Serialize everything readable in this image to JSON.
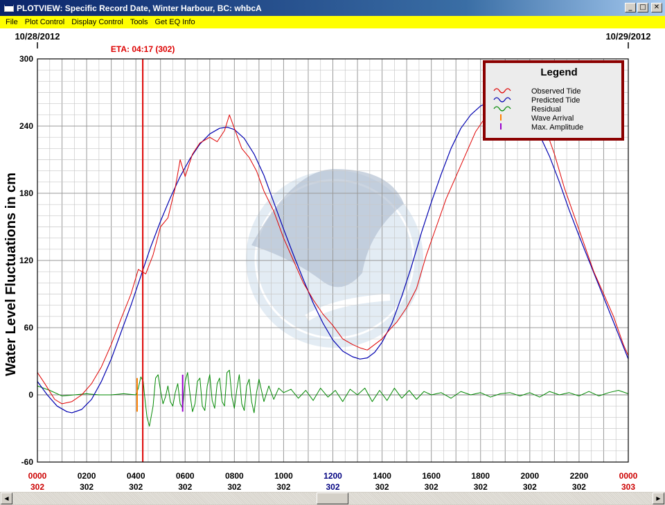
{
  "window": {
    "title": "PLOTVIEW: Specific Record Date, Winter Harbour, BC: whbcA",
    "minimize_glyph": "_",
    "maximize_glyph": "□",
    "close_glyph": "✕"
  },
  "menu": [
    "File",
    "Plot Control",
    "Display Control",
    "Tools",
    "Get EQ Info"
  ],
  "scrollbar": {
    "left_glyph": "◀",
    "right_glyph": "▶",
    "position_fraction": 0.5
  },
  "colors": {
    "observed": "#e00000",
    "predicted": "#0000b0",
    "residual": "#008800",
    "arrival": "#ff8000",
    "max_amplitude": "#9900cc",
    "eta_line": "#dd0000",
    "legend_border": "#8b0000",
    "noaa_logo": "#c8d8ea"
  },
  "chart_data": {
    "type": "line",
    "ylabel": "Water Level Fluctuations in cm",
    "ylim": [
      -60,
      300
    ],
    "yticks": [
      -60,
      0,
      60,
      120,
      180,
      240,
      300
    ],
    "xlim": [
      0,
      24
    ],
    "grid": true,
    "legend_position": "top-right",
    "legend_title": "Legend",
    "date_labels": [
      {
        "x": 0,
        "text": "10/28/2012"
      },
      {
        "x": 24,
        "text": "10/29/2012"
      }
    ],
    "x_ticks": [
      {
        "x": 0,
        "time": "0000",
        "day": "302",
        "style": "red"
      },
      {
        "x": 2,
        "time": "0200",
        "day": "302",
        "style": "black"
      },
      {
        "x": 4,
        "time": "0400",
        "day": "302",
        "style": "black"
      },
      {
        "x": 6,
        "time": "0600",
        "day": "302",
        "style": "black"
      },
      {
        "x": 8,
        "time": "0800",
        "day": "302",
        "style": "black"
      },
      {
        "x": 10,
        "time": "1000",
        "day": "302",
        "style": "black"
      },
      {
        "x": 12,
        "time": "1200",
        "day": "302",
        "style": "blue"
      },
      {
        "x": 14,
        "time": "1400",
        "day": "302",
        "style": "black"
      },
      {
        "x": 16,
        "time": "1600",
        "day": "302",
        "style": "black"
      },
      {
        "x": 18,
        "time": "1800",
        "day": "302",
        "style": "black"
      },
      {
        "x": 20,
        "time": "2000",
        "day": "302",
        "style": "black"
      },
      {
        "x": 22,
        "time": "2200",
        "day": "302",
        "style": "black"
      },
      {
        "x": 24,
        "time": "0000",
        "day": "303",
        "style": "red"
      }
    ],
    "eta": {
      "x": 4.28,
      "label": "ETA: 04:17 (302)"
    },
    "wave_arrival": {
      "x": 4.05,
      "y_range": [
        -15,
        15
      ]
    },
    "max_amplitude": {
      "x": 5.9,
      "y_range": [
        -15,
        18
      ]
    },
    "series": [
      {
        "name": "Observed Tide",
        "key": "observed",
        "x": [
          0,
          0.3,
          0.7,
          1.0,
          1.4,
          1.8,
          2.2,
          2.6,
          3.0,
          3.4,
          3.8,
          4.1,
          4.4,
          4.7,
          5.0,
          5.3,
          5.6,
          5.8,
          6.0,
          6.3,
          6.6,
          7.0,
          7.3,
          7.6,
          7.8,
          8.0,
          8.3,
          8.6,
          8.9,
          9.2,
          9.6,
          10.0,
          10.4,
          10.8,
          11.2,
          11.6,
          12.0,
          12.4,
          12.8,
          13.1,
          13.4,
          13.7,
          14.0,
          14.3,
          14.6,
          15.0,
          15.4,
          15.8,
          16.2,
          16.6,
          17.0,
          17.4,
          17.8,
          18.2,
          18.6,
          19.0,
          19.4,
          19.8,
          20.2,
          20.6,
          21.0,
          21.4,
          21.8,
          22.2,
          22.6,
          23.0,
          23.4,
          23.8,
          24.0
        ],
        "y": [
          20,
          10,
          -4,
          -8,
          -6,
          0,
          10,
          25,
          45,
          68,
          90,
          112,
          108,
          125,
          150,
          158,
          185,
          210,
          195,
          215,
          225,
          230,
          226,
          236,
          250,
          238,
          220,
          212,
          200,
          182,
          164,
          140,
          120,
          100,
          85,
          72,
          62,
          50,
          45,
          42,
          40,
          45,
          50,
          58,
          65,
          78,
          95,
          125,
          150,
          175,
          195,
          215,
          235,
          248,
          260,
          268,
          272,
          270,
          260,
          240,
          215,
          185,
          160,
          135,
          110,
          90,
          70,
          45,
          35
        ]
      },
      {
        "name": "Predicted Tide",
        "key": "predicted",
        "x": [
          0,
          0.4,
          0.8,
          1.2,
          1.4,
          1.8,
          2.2,
          2.6,
          3.0,
          3.4,
          3.8,
          4.2,
          4.6,
          5.0,
          5.4,
          5.8,
          6.2,
          6.6,
          7.0,
          7.4,
          7.7,
          8.0,
          8.4,
          8.8,
          9.2,
          9.6,
          10.0,
          10.4,
          10.8,
          11.2,
          11.6,
          12.0,
          12.4,
          12.8,
          13.1,
          13.4,
          13.7,
          14.0,
          14.4,
          14.8,
          15.2,
          15.6,
          16.0,
          16.4,
          16.8,
          17.2,
          17.6,
          18.0,
          18.4,
          18.8,
          19.2,
          19.6,
          20.0,
          20.4,
          20.8,
          21.2,
          21.6,
          22.0,
          22.4,
          22.8,
          23.2,
          23.6,
          24.0
        ],
        "y": [
          12,
          0,
          -10,
          -15,
          -16,
          -13,
          -4,
          12,
          32,
          56,
          80,
          106,
          132,
          155,
          176,
          195,
          211,
          224,
          233,
          238,
          239,
          237,
          229,
          215,
          196,
          172,
          148,
          125,
          103,
          82,
          64,
          49,
          39,
          34,
          32,
          33,
          38,
          47,
          64,
          88,
          115,
          145,
          172,
          197,
          220,
          238,
          250,
          258,
          262,
          263,
          261,
          255,
          246,
          232,
          213,
          190,
          165,
          142,
          120,
          98,
          76,
          54,
          32
        ]
      },
      {
        "name": "Residual",
        "key": "residual",
        "x": [
          0,
          0.5,
          1.0,
          1.5,
          2.0,
          2.5,
          3.0,
          3.5,
          4.0,
          4.1,
          4.2,
          4.3,
          4.35,
          4.45,
          4.55,
          4.7,
          4.8,
          4.9,
          5.0,
          5.1,
          5.2,
          5.3,
          5.4,
          5.5,
          5.6,
          5.7,
          5.8,
          5.9,
          6.0,
          6.1,
          6.2,
          6.3,
          6.4,
          6.5,
          6.6,
          6.7,
          6.8,
          6.9,
          7.0,
          7.1,
          7.2,
          7.3,
          7.4,
          7.5,
          7.6,
          7.7,
          7.8,
          7.9,
          8.0,
          8.1,
          8.2,
          8.3,
          8.4,
          8.5,
          8.6,
          8.7,
          8.8,
          8.9,
          9.0,
          9.2,
          9.4,
          9.6,
          9.8,
          10.0,
          10.3,
          10.6,
          10.9,
          11.2,
          11.5,
          11.8,
          12.1,
          12.4,
          12.7,
          13.0,
          13.3,
          13.6,
          13.9,
          14.2,
          14.5,
          14.8,
          15.1,
          15.4,
          15.7,
          16.0,
          16.4,
          16.8,
          17.2,
          17.6,
          18.0,
          18.4,
          18.8,
          19.2,
          19.6,
          20.0,
          20.4,
          20.8,
          21.2,
          21.6,
          22.0,
          22.4,
          22.8,
          23.2,
          23.6,
          24.0
        ],
        "y": [
          8,
          4,
          -1,
          0,
          1,
          0,
          0,
          1,
          0,
          6,
          16,
          12,
          0,
          -20,
          -28,
          -10,
          15,
          18,
          4,
          -8,
          -2,
          8,
          -6,
          -10,
          2,
          10,
          -8,
          -12,
          12,
          20,
          0,
          -15,
          -8,
          12,
          15,
          -10,
          -14,
          8,
          18,
          -5,
          -12,
          10,
          15,
          -6,
          -10,
          20,
          22,
          -2,
          -12,
          5,
          18,
          -8,
          -14,
          8,
          14,
          -6,
          -16,
          2,
          14,
          -6,
          8,
          -4,
          6,
          2,
          5,
          -3,
          4,
          -5,
          6,
          -2,
          4,
          -6,
          5,
          0,
          6,
          -6,
          4,
          -5,
          6,
          -3,
          4,
          -4,
          3,
          0,
          2,
          -3,
          3,
          0,
          2,
          -2,
          1,
          2,
          -1,
          2,
          -2,
          3,
          0,
          2,
          -1,
          3,
          -1,
          2,
          4,
          1
        ]
      },
      {
        "name": "Wave Arrival",
        "key": "arrival",
        "marker": "tick"
      },
      {
        "name": "Max. Amplitude",
        "key": "max_amplitude",
        "marker": "tick"
      }
    ]
  }
}
